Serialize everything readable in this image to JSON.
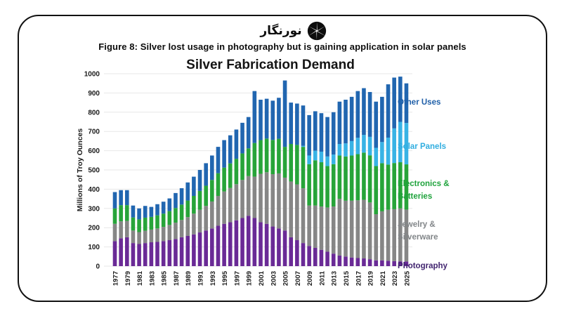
{
  "header": {
    "logo_text": "نورنگار",
    "caption": "Figure 8: Silver lost usage in photography but is gaining application in solar panels"
  },
  "chart_data": {
    "type": "bar",
    "stacked": true,
    "title": "Silver Fabrication Demand",
    "ylabel": "Millions of Troy Ounces",
    "ylim": [
      0,
      1000
    ],
    "ytick_interval": 100,
    "grid": true,
    "legend_position": "right",
    "years": [
      1977,
      1978,
      1979,
      1980,
      1981,
      1982,
      1983,
      1984,
      1985,
      1986,
      1987,
      1988,
      1989,
      1990,
      1991,
      1992,
      1993,
      1994,
      1995,
      1996,
      1997,
      1998,
      1999,
      2000,
      2001,
      2002,
      2003,
      2004,
      2005,
      2006,
      2007,
      2008,
      2009,
      2010,
      2011,
      2012,
      2013,
      2014,
      2015,
      2016,
      2017,
      2018,
      2019,
      2020,
      2021,
      2022,
      2023,
      2024,
      2025
    ],
    "xtick_labels": [
      1977,
      1979,
      1981,
      1983,
      1985,
      1987,
      1989,
      1991,
      1993,
      1995,
      1997,
      1999,
      2001,
      2003,
      2005,
      2007,
      2009,
      2011,
      2013,
      2015,
      2017,
      2019,
      2021,
      2023,
      2025
    ],
    "series": [
      {
        "name": "Photography",
        "color": "#6a2a96",
        "values": [
          130,
          145,
          150,
          120,
          115,
          120,
          124,
          126,
          130,
          135,
          141,
          150,
          157,
          165,
          175,
          185,
          196,
          210,
          220,
          228,
          238,
          250,
          262,
          250,
          228,
          220,
          206,
          196,
          185,
          150,
          135,
          120,
          105,
          95,
          85,
          75,
          65,
          55,
          50,
          45,
          42,
          40,
          36,
          30,
          30,
          28,
          26,
          25,
          24
        ]
      },
      {
        "name": "Jewelry & Silverware",
        "color": "#868686",
        "values": [
          90,
          88,
          85,
          65,
          62,
          64,
          66,
          70,
          74,
          79,
          85,
          90,
          98,
          108,
          118,
          128,
          140,
          155,
          168,
          178,
          188,
          198,
          206,
          215,
          252,
          268,
          272,
          286,
          275,
          290,
          290,
          285,
          210,
          220,
          225,
          230,
          245,
          295,
          290,
          295,
          300,
          305,
          295,
          240,
          255,
          265,
          270,
          275,
          270
        ]
      },
      {
        "name": "Electronics & Batteries",
        "color": "#27a439",
        "values": [
          80,
          84,
          82,
          68,
          66,
          68,
          66,
          68,
          69,
          72,
          76,
          80,
          86,
          92,
          98,
          105,
          112,
          118,
          124,
          128,
          132,
          138,
          144,
          175,
          175,
          175,
          178,
          180,
          160,
          195,
          205,
          215,
          215,
          235,
          230,
          215,
          220,
          225,
          230,
          235,
          240,
          245,
          245,
          250,
          250,
          235,
          240,
          240,
          235
        ]
      },
      {
        "name": "Solar Panels",
        "color": "#38b3e5",
        "values": [
          0,
          0,
          0,
          0,
          0,
          0,
          0,
          0,
          0,
          0,
          0,
          0,
          0,
          0,
          0,
          0,
          0,
          0,
          0,
          0,
          0,
          0,
          0,
          0,
          0,
          0,
          0,
          0,
          0,
          0,
          0,
          5,
          45,
          50,
          55,
          50,
          50,
          60,
          68,
          75,
          85,
          92,
          96,
          95,
          110,
          140,
          180,
          210,
          215
        ]
      },
      {
        "name": "Other Uses",
        "color": "#2166b0",
        "values": [
          85,
          78,
          78,
          62,
          57,
          61,
          52,
          58,
          62,
          66,
          78,
          85,
          94,
          100,
          109,
          117,
          127,
          137,
          143,
          146,
          152,
          159,
          163,
          270,
          210,
          207,
          204,
          213,
          345,
          215,
          215,
          210,
          210,
          205,
          200,
          205,
          220,
          220,
          227,
          230,
          243,
          243,
          233,
          240,
          235,
          277,
          264,
          235,
          206
        ]
      }
    ],
    "legend": [
      {
        "label": "Other Uses",
        "color": "#1f5fa8"
      },
      {
        "label": "Solar Panels",
        "color": "#31aee0"
      },
      {
        "label": "Electronics &\nBatteries",
        "color": "#1fa33c"
      },
      {
        "label": "Jewelry &\nSilverware",
        "color": "#828689"
      },
      {
        "label": "Photography",
        "color": "#41246f"
      }
    ]
  }
}
